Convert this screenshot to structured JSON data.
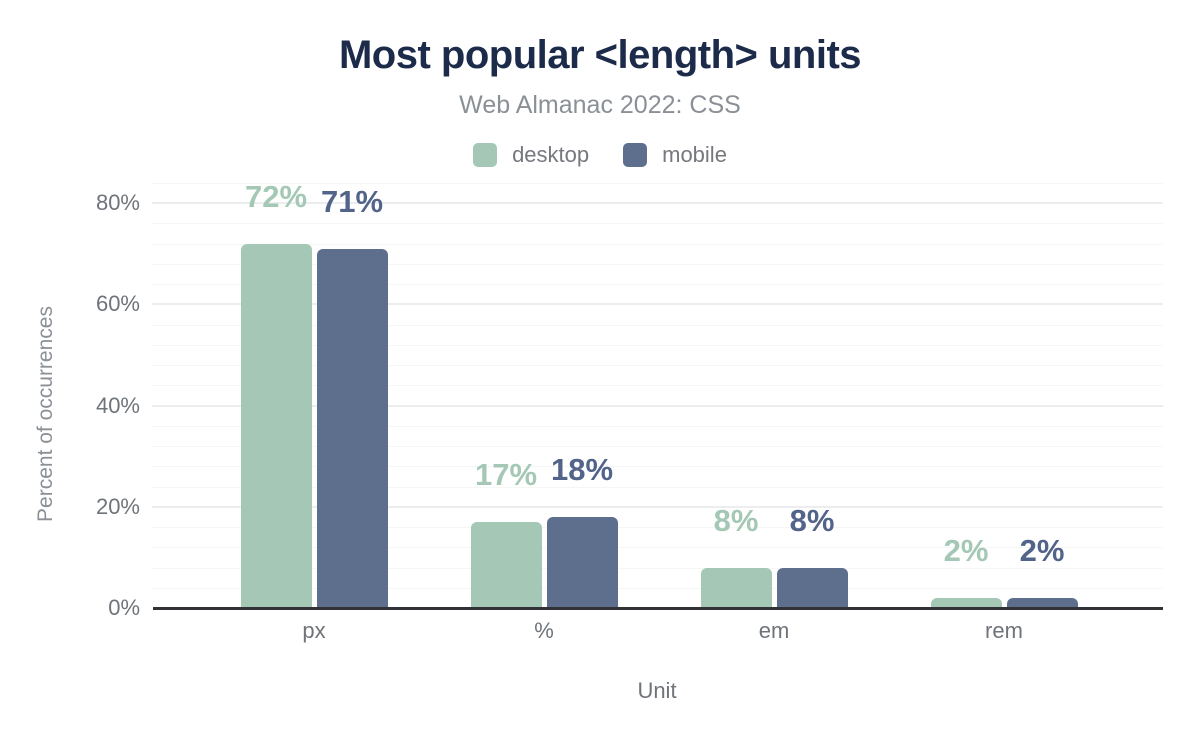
{
  "header": {
    "title": "Most popular <length> units",
    "subtitle": "Web Almanac 2022: CSS"
  },
  "chart_data": {
    "type": "bar",
    "title": "Most popular <length> units",
    "subtitle": "Web Almanac 2022: CSS",
    "categories": [
      "px",
      "%",
      "em",
      "rem"
    ],
    "series": [
      {
        "name": "desktop",
        "color": "#a4c8b5",
        "label_color": "#a4c8b5",
        "values": [
          72,
          17,
          8,
          2
        ],
        "data_labels": [
          "72%",
          "17%",
          "8%",
          "2%"
        ]
      },
      {
        "name": "mobile",
        "color": "#5e6f8e",
        "label_color": "#52648a",
        "values": [
          71,
          18,
          8,
          2
        ],
        "data_labels": [
          "71%",
          "18%",
          "8%",
          "2%"
        ]
      }
    ],
    "xlabel": "Unit",
    "ylabel": "Percent of occurrences",
    "y_ticks": [
      {
        "value": 0,
        "label": "0%"
      },
      {
        "value": 20,
        "label": "20%"
      },
      {
        "value": 40,
        "label": "40%"
      },
      {
        "value": 60,
        "label": "60%"
      },
      {
        "value": 80,
        "label": "80%"
      }
    ],
    "ylim": [
      0,
      84
    ],
    "grid": {
      "minor_step_pct": 4,
      "major_step_pct": 20,
      "minor_color": "#f5f6f6",
      "major_color": "#ebedee"
    },
    "legend_position": "top"
  },
  "colors": {
    "background": "#ffffff",
    "title": "#1c2b4a",
    "subtitle": "#8a9096",
    "axis_text": "#6f747a",
    "axis_line": "#303236"
  }
}
